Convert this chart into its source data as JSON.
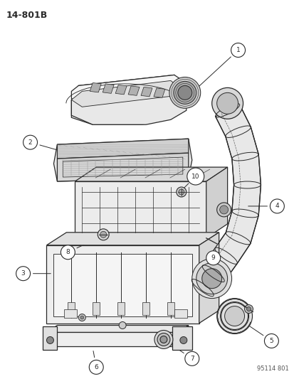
{
  "bg_color": "#ffffff",
  "diagram_id": "14-801B",
  "catalog_num": "95114 801",
  "fig_width": 4.14,
  "fig_height": 5.33,
  "dpi": 100,
  "line_color": "#2a2a2a",
  "fill_light": "#f0f0f0",
  "fill_medium": "#e0e0e0",
  "fill_dark": "#c8c8c8"
}
